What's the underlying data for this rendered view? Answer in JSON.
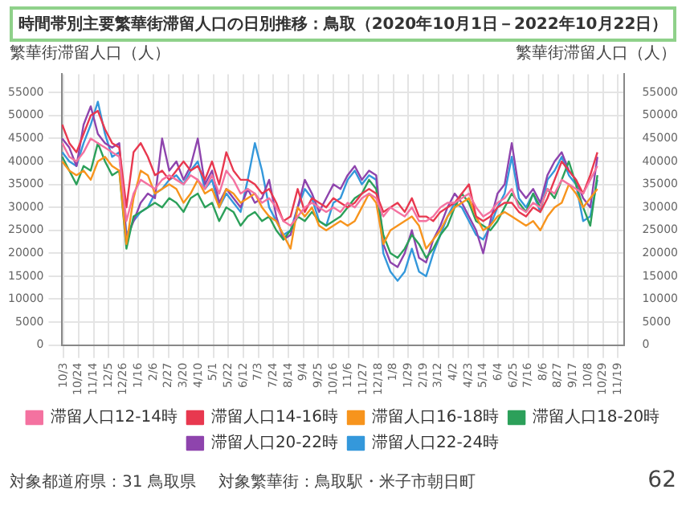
{
  "chart_data": {
    "type": "line",
    "title": "時間帯別主要繁華街滞留人口の日別推移：鳥取（2020年10月1日－2022年10月22日）",
    "ylabel": "繁華街滞留人口（人）",
    "y2label": "繁華街滞留人口（人）",
    "annotations": [
      "対象都道府県：31 鳥取県",
      "対象繁華街：鳥取駅・米子市朝日町",
      "62"
    ],
    "x": [
      "2020-10-01",
      "2020-10-11",
      "2020-10-21",
      "2020-10-31",
      "2020-11-10",
      "2020-11-20",
      "2020-11-30",
      "2020-12-10",
      "2020-12-20",
      "2020-12-30",
      "2021-01-09",
      "2021-01-19",
      "2021-01-29",
      "2021-02-08",
      "2021-02-18",
      "2021-02-28",
      "2021-03-10",
      "2021-03-20",
      "2021-03-30",
      "2021-04-09",
      "2021-04-19",
      "2021-04-29",
      "2021-05-09",
      "2021-05-19",
      "2021-05-29",
      "2021-06-08",
      "2021-06-18",
      "2021-06-28",
      "2021-07-08",
      "2021-07-18",
      "2021-07-28",
      "2021-08-07",
      "2021-08-17",
      "2021-08-27",
      "2021-09-06",
      "2021-09-16",
      "2021-09-26",
      "2021-10-06",
      "2021-10-16",
      "2021-10-26",
      "2021-11-05",
      "2021-11-15",
      "2021-11-25",
      "2021-12-05",
      "2021-12-15",
      "2021-12-25",
      "2022-01-04",
      "2022-01-14",
      "2022-01-24",
      "2022-02-03",
      "2022-02-13",
      "2022-02-23",
      "2022-03-05",
      "2022-03-15",
      "2022-03-25",
      "2022-04-04",
      "2022-04-14",
      "2022-04-24",
      "2022-05-04",
      "2022-05-14",
      "2022-05-24",
      "2022-06-03",
      "2022-06-13",
      "2022-06-23",
      "2022-07-03",
      "2022-07-13",
      "2022-07-23",
      "2022-08-02",
      "2022-08-12",
      "2022-08-22",
      "2022-09-01",
      "2022-09-11",
      "2022-09-21",
      "2022-10-01",
      "2022-10-11",
      "2022-10-21"
    ],
    "series": [
      {
        "name": "滞留人口12-14時",
        "color": "#f472a0",
        "values": [
          44000,
          41000,
          40000,
          42000,
          45000,
          44000,
          43000,
          42000,
          41000,
          27000,
          33000,
          36000,
          35000,
          34000,
          36000,
          37000,
          36000,
          35000,
          37000,
          36000,
          34000,
          37000,
          33000,
          38000,
          36000,
          33000,
          34000,
          33000,
          31000,
          32000,
          30000,
          27000,
          26000,
          28000,
          30000,
          31000,
          30000,
          29000,
          30000,
          29000,
          31000,
          30000,
          32000,
          33000,
          32000,
          28000,
          30000,
          29000,
          28000,
          30000,
          27000,
          27000,
          28000,
          30000,
          31000,
          31000,
          32000,
          33000,
          30000,
          28000,
          29000,
          31000,
          32000,
          34000,
          30000,
          29000,
          31000,
          30000,
          34000,
          33000,
          36000,
          35000,
          34000,
          33000,
          36000,
          39000
        ]
      },
      {
        "name": "滞留人口14-16時",
        "color": "#e8384f",
        "values": [
          48000,
          44000,
          42000,
          46000,
          50000,
          51000,
          47000,
          44000,
          43000,
          30000,
          42000,
          44000,
          41000,
          37000,
          38000,
          36000,
          38000,
          40000,
          38000,
          39000,
          36000,
          40000,
          35000,
          42000,
          38000,
          36000,
          36000,
          35000,
          33000,
          34000,
          31000,
          27000,
          28000,
          34000,
          29000,
          32000,
          31000,
          30000,
          32000,
          31000,
          30000,
          31000,
          33000,
          34000,
          33000,
          29000,
          30000,
          31000,
          29000,
          32000,
          28000,
          28000,
          27000,
          29000,
          30000,
          31000,
          33000,
          35000,
          28000,
          27000,
          28000,
          30000,
          31000,
          31000,
          29000,
          28000,
          30000,
          29000,
          32000,
          36000,
          40000,
          38000,
          36000,
          33000,
          37000,
          42000
        ]
      },
      {
        "name": "滞留人口16-18時",
        "color": "#f7941d",
        "values": [
          40000,
          38000,
          37000,
          38000,
          36000,
          40000,
          41000,
          39000,
          38000,
          22000,
          32000,
          38000,
          37000,
          33000,
          34000,
          35000,
          34000,
          31000,
          33000,
          36000,
          33000,
          34000,
          30000,
          34000,
          33000,
          31000,
          32000,
          33000,
          30000,
          28000,
          27000,
          24000,
          21000,
          30000,
          28000,
          30000,
          26000,
          25000,
          26000,
          27000,
          26000,
          27000,
          30000,
          33000,
          31000,
          22000,
          25000,
          26000,
          27000,
          28000,
          26000,
          21000,
          23000,
          25000,
          28000,
          30000,
          31000,
          32000,
          28000,
          25000,
          26000,
          28000,
          29000,
          28000,
          27000,
          26000,
          27000,
          25000,
          28000,
          30000,
          31000,
          35000,
          33000,
          30000,
          32000,
          34000
        ]
      },
      {
        "name": "滞留人口18-20時",
        "color": "#2ca05a",
        "values": [
          41000,
          38000,
          35000,
          39000,
          38000,
          44000,
          40000,
          37000,
          38000,
          21000,
          28000,
          29000,
          30000,
          31000,
          30000,
          32000,
          31000,
          29000,
          32000,
          33000,
          30000,
          31000,
          27000,
          30000,
          29000,
          26000,
          28000,
          29000,
          27000,
          28000,
          25000,
          23000,
          25000,
          28000,
          27000,
          29000,
          27000,
          26000,
          27000,
          28000,
          30000,
          32000,
          33000,
          36000,
          34000,
          24000,
          20000,
          19000,
          21000,
          24000,
          22000,
          19000,
          21000,
          24000,
          26000,
          30000,
          33000,
          31000,
          27000,
          26000,
          25000,
          27000,
          30000,
          33000,
          31000,
          29000,
          33000,
          30000,
          34000,
          32000,
          36000,
          40000,
          35000,
          30000,
          26000,
          37000
        ]
      },
      {
        "name": "滞留人口20-22時",
        "color": "#8e44ad",
        "values": [
          45000,
          43000,
          39000,
          48000,
          52000,
          46000,
          44000,
          43000,
          44000,
          23000,
          27000,
          31000,
          33000,
          32000,
          45000,
          38000,
          40000,
          36000,
          39000,
          45000,
          35000,
          38000,
          31000,
          34000,
          32000,
          30000,
          34000,
          31000,
          32000,
          36000,
          28000,
          23000,
          24000,
          30000,
          36000,
          33000,
          29000,
          32000,
          35000,
          34000,
          37000,
          39000,
          36000,
          38000,
          37000,
          22000,
          18000,
          17000,
          20000,
          25000,
          19000,
          18000,
          23000,
          26000,
          30000,
          33000,
          31000,
          28000,
          25000,
          20000,
          27000,
          33000,
          35000,
          44000,
          34000,
          32000,
          34000,
          31000,
          37000,
          40000,
          42000,
          38000,
          36000,
          32000,
          30000,
          41000
        ]
      },
      {
        "name": "滞留人口22-24時",
        "color": "#3498db",
        "values": [
          42000,
          40000,
          39000,
          44000,
          48000,
          53000,
          46000,
          41000,
          42000,
          24000,
          27000,
          29000,
          30000,
          33000,
          34000,
          36000,
          37000,
          35000,
          38000,
          40000,
          34000,
          36000,
          30000,
          33000,
          31000,
          29000,
          36000,
          44000,
          38000,
          30000,
          27000,
          24000,
          25000,
          30000,
          34000,
          32000,
          27000,
          26000,
          31000,
          32000,
          36000,
          38000,
          35000,
          37000,
          36000,
          20000,
          16000,
          14000,
          16000,
          21000,
          16000,
          15000,
          20000,
          24000,
          28000,
          31000,
          30000,
          27000,
          24000,
          23000,
          26000,
          30000,
          33000,
          41000,
          32000,
          30000,
          33000,
          29000,
          36000,
          38000,
          41000,
          37000,
          35000,
          27000,
          28000,
          36000
        ]
      }
    ],
    "xlim": [
      "2020-09-30",
      "2022-11-28"
    ],
    "xticks": [
      {
        "value": "2020-10-03",
        "label": "10/3"
      },
      {
        "value": "2020-10-24",
        "label": "10/24"
      },
      {
        "value": "2020-11-14",
        "label": "11/14"
      },
      {
        "value": "2020-12-05",
        "label": "12/5"
      },
      {
        "value": "2020-12-26",
        "label": "12/26"
      },
      {
        "value": "2021-01-16",
        "label": "1/16"
      },
      {
        "value": "2021-02-06",
        "label": "2/6"
      },
      {
        "value": "2021-02-27",
        "label": "2/27"
      },
      {
        "value": "2021-03-20",
        "label": "3/20"
      },
      {
        "value": "2021-04-10",
        "label": "4/10"
      },
      {
        "value": "2021-05-01",
        "label": "5/1"
      },
      {
        "value": "2021-05-22",
        "label": "5/22"
      },
      {
        "value": "2021-06-12",
        "label": "6/12"
      },
      {
        "value": "2021-07-03",
        "label": "7/3"
      },
      {
        "value": "2021-07-24",
        "label": "7/24"
      },
      {
        "value": "2021-08-14",
        "label": "8/14"
      },
      {
        "value": "2021-09-04",
        "label": "9/4"
      },
      {
        "value": "2021-09-25",
        "label": "9/25"
      },
      {
        "value": "2021-10-16",
        "label": "10/16"
      },
      {
        "value": "2021-11-06",
        "label": "11/6"
      },
      {
        "value": "2021-11-27",
        "label": "11/27"
      },
      {
        "value": "2021-12-18",
        "label": "12/18"
      },
      {
        "value": "2022-01-08",
        "label": "1/8"
      },
      {
        "value": "2022-01-29",
        "label": "1/29"
      },
      {
        "value": "2022-02-19",
        "label": "2/19"
      },
      {
        "value": "2022-03-12",
        "label": "3/12"
      },
      {
        "value": "2022-04-02",
        "label": "4/2"
      },
      {
        "value": "2022-04-23",
        "label": "4/23"
      },
      {
        "value": "2022-05-14",
        "label": "5/14"
      },
      {
        "value": "2022-06-04",
        "label": "6/4"
      },
      {
        "value": "2022-06-25",
        "label": "6/25"
      },
      {
        "value": "2022-07-16",
        "label": "7/16"
      },
      {
        "value": "2022-08-06",
        "label": "8/6"
      },
      {
        "value": "2022-08-27",
        "label": "8/27"
      },
      {
        "value": "2022-09-17",
        "label": "9/17"
      },
      {
        "value": "2022-10-08",
        "label": "10/8"
      },
      {
        "value": "2022-10-29",
        "label": "10/29"
      },
      {
        "value": "2022-11-19",
        "label": "11/19"
      }
    ],
    "ylim": [
      0,
      59000
    ],
    "yticks": [
      0,
      5000,
      10000,
      15000,
      20000,
      25000,
      30000,
      35000,
      40000,
      45000,
      50000,
      55000
    ],
    "y2lim": [
      0,
      59000
    ],
    "y2ticks": [
      0,
      5000,
      10000,
      15000,
      20000,
      25000,
      30000,
      35000,
      40000,
      45000,
      50000,
      55000
    ],
    "grid": true,
    "legend": "bottom"
  }
}
